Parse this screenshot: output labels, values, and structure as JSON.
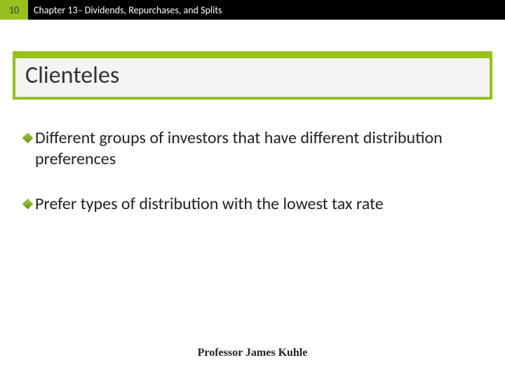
{
  "header": {
    "page_number": "10",
    "chapter_title": "Chapter 13– Dividends, Repurchases, and Splits"
  },
  "title": "Clienteles",
  "bullets": [
    "Different groups of investors that have different distribution preferences",
    "Prefer types of distribution with the lowest tax rate"
  ],
  "footer": "Professor James Kuhle",
  "colors": {
    "accent": "#96c11f",
    "header_dark": "#000000",
    "text": "#222222",
    "title_bg": "#f4f4f4"
  }
}
